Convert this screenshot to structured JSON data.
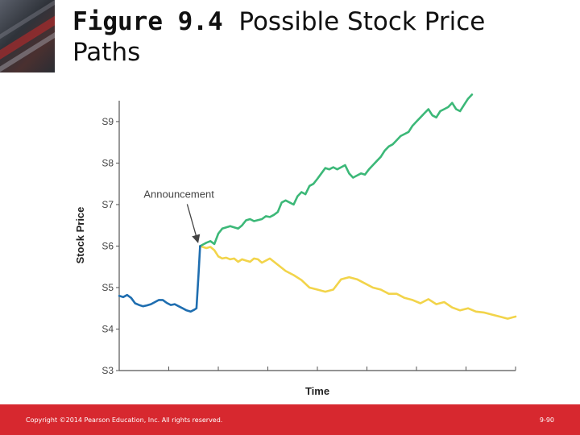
{
  "slide": {
    "title_bold": "Figure 9.4",
    "title_rest": "Possible Stock Price Paths",
    "footer_copyright": "Copyright ©2014 Pearson Education, Inc. All rights reserved.",
    "footer_page": "9-90"
  },
  "colors": {
    "footer": "#d7282f",
    "pre_announcement": "#1f6eb0",
    "up_path": "#3cb878",
    "down_path": "#f2d44a",
    "axis": "#555555"
  },
  "chart_data": {
    "type": "line",
    "title": "",
    "xlabel": "Time",
    "ylabel": "Stock Price",
    "y_ticks": [
      "S3",
      "S4",
      "S5",
      "S6",
      "S7",
      "S8",
      "S9"
    ],
    "ylim": [
      3,
      9.6
    ],
    "xlim": [
      0,
      100
    ],
    "x_tick_count": 8,
    "annotation": {
      "text": "Announcement",
      "x": 20.4,
      "y": 6.0
    },
    "series": [
      {
        "key": "pre",
        "x": [
          0,
          1,
          2,
          3,
          4,
          5,
          6,
          7,
          8,
          9,
          10,
          11,
          12,
          13,
          14,
          15,
          16,
          17,
          18,
          19,
          19.5,
          20,
          20.4
        ],
        "y": [
          4.8,
          4.77,
          4.82,
          4.75,
          4.62,
          4.58,
          4.55,
          4.57,
          4.6,
          4.65,
          4.7,
          4.7,
          4.63,
          4.58,
          4.6,
          4.55,
          4.5,
          4.45,
          4.42,
          4.47,
          4.5,
          5.3,
          6.0
        ]
      },
      {
        "key": "up",
        "x": [
          20.4,
          22,
          23,
          24,
          25,
          26,
          28,
          30,
          31,
          32,
          33,
          34,
          36,
          37,
          38,
          39,
          40,
          41,
          42,
          44,
          45,
          46,
          47,
          48,
          49,
          50,
          51,
          52,
          53,
          54,
          55,
          56,
          57,
          58,
          59,
          60,
          61,
          62,
          63,
          64,
          65,
          66,
          67,
          68,
          69,
          70,
          71,
          72,
          73,
          74,
          75,
          76,
          77,
          78,
          79,
          80,
          81,
          82,
          83,
          84,
          85,
          86,
          87,
          88,
          89
        ],
        "y": [
          6.0,
          6.08,
          6.12,
          6.05,
          6.3,
          6.42,
          6.48,
          6.42,
          6.5,
          6.62,
          6.65,
          6.6,
          6.65,
          6.72,
          6.7,
          6.75,
          6.82,
          7.05,
          7.1,
          7.0,
          7.2,
          7.3,
          7.25,
          7.45,
          7.5,
          7.62,
          7.75,
          7.88,
          7.85,
          7.9,
          7.85,
          7.9,
          7.95,
          7.75,
          7.65,
          7.7,
          7.75,
          7.72,
          7.85,
          7.95,
          8.05,
          8.15,
          8.3,
          8.4,
          8.45,
          8.55,
          8.65,
          8.7,
          8.75,
          8.9,
          9.0,
          9.1,
          9.2,
          9.3,
          9.15,
          9.1,
          9.25,
          9.3,
          9.35,
          9.45,
          9.3,
          9.25,
          9.4,
          9.55,
          9.65
        ]
      },
      {
        "key": "down",
        "x": [
          20.4,
          22,
          23,
          24,
          25,
          26,
          27,
          28,
          29,
          30,
          31,
          32,
          33,
          34,
          35,
          36,
          37,
          38,
          40,
          42,
          44,
          46,
          48,
          50,
          52,
          54,
          56,
          58,
          60,
          62,
          64,
          66,
          68,
          70,
          72,
          74,
          76,
          78,
          80,
          82,
          84,
          86,
          88,
          90,
          92,
          94,
          96,
          98,
          100
        ],
        "y": [
          6.0,
          5.95,
          5.98,
          5.9,
          5.75,
          5.7,
          5.72,
          5.68,
          5.7,
          5.62,
          5.68,
          5.65,
          5.62,
          5.7,
          5.68,
          5.6,
          5.65,
          5.7,
          5.55,
          5.4,
          5.3,
          5.18,
          5.0,
          4.95,
          4.9,
          4.95,
          5.2,
          5.25,
          5.2,
          5.1,
          5.0,
          4.95,
          4.85,
          4.85,
          4.75,
          4.7,
          4.62,
          4.72,
          4.6,
          4.65,
          4.52,
          4.45,
          4.5,
          4.42,
          4.4,
          4.35,
          4.3,
          4.25,
          4.3
        ]
      }
    ]
  }
}
